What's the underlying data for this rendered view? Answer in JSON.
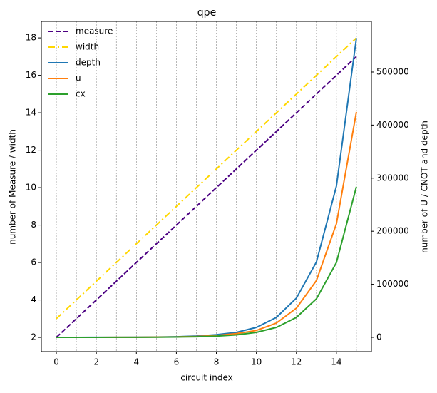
{
  "chart_data": {
    "type": "line",
    "title": "qpe",
    "xlabel": "circuit index",
    "ylabel": "number of Measure / width",
    "y2label": "number of U / CNOT and depth",
    "x": [
      0,
      1,
      2,
      3,
      4,
      5,
      6,
      7,
      8,
      9,
      10,
      11,
      12,
      13,
      14,
      15
    ],
    "xlim": [
      -0.75,
      15.75
    ],
    "xticks": [
      0,
      2,
      4,
      6,
      8,
      10,
      12,
      14
    ],
    "ylim": [
      1.24,
      18.88
    ],
    "yticks": [
      2,
      4,
      6,
      8,
      10,
      12,
      14,
      16,
      18
    ],
    "y2lim": [
      -26900,
      595400
    ],
    "y2ticks": [
      0,
      100000,
      200000,
      300000,
      400000,
      500000
    ],
    "grid": "x",
    "legend": "upper left",
    "series": [
      {
        "name": "measure",
        "color": "#4b0082",
        "dash": "dashed",
        "axis": "y",
        "values": [
          2,
          3,
          4,
          5,
          6,
          7,
          8,
          9,
          10,
          11,
          12,
          13,
          14,
          15,
          16,
          17
        ]
      },
      {
        "name": "width",
        "color": "#ffd700",
        "dash": "dashdot",
        "axis": "y",
        "values": [
          3,
          4,
          5,
          6,
          7,
          8,
          9,
          10,
          11,
          12,
          13,
          14,
          15,
          16,
          17,
          18
        ]
      },
      {
        "name": "depth",
        "color": "#1f77b4",
        "dash": "solid",
        "axis": "y2",
        "values": [
          20,
          40,
          80,
          150,
          300,
          600,
          1200,
          2500,
          5000,
          9400,
          18800,
          37600,
          74000,
          142000,
          285000,
          564000
        ]
      },
      {
        "name": "u",
        "color": "#ff7f0e",
        "dash": "solid",
        "axis": "y2",
        "values": [
          15,
          30,
          60,
          110,
          220,
          450,
          900,
          1700,
          3500,
          7000,
          13000,
          27000,
          55000,
          107000,
          214000,
          425000
        ]
      },
      {
        "name": "cx",
        "color": "#2ca02c",
        "dash": "solid",
        "axis": "y2",
        "values": [
          10,
          20,
          40,
          75,
          150,
          300,
          600,
          1200,
          2400,
          4700,
          9400,
          18800,
          37600,
          72600,
          141000,
          284000
        ]
      }
    ]
  }
}
